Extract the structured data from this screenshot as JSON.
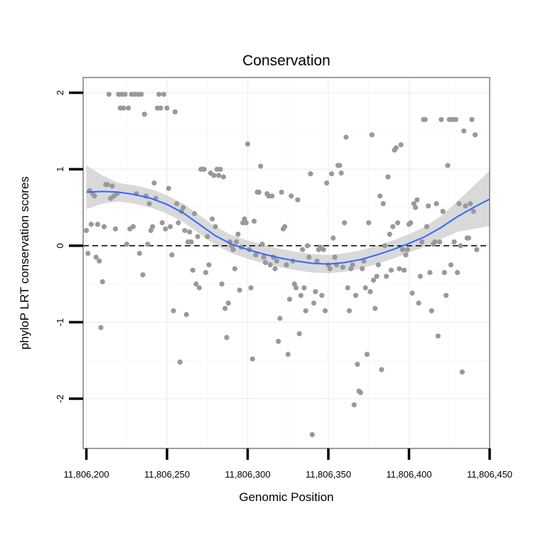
{
  "chart_data": {
    "type": "scatter",
    "title": "Conservation",
    "xlabel": "Genomic Position",
    "ylabel": "phyloP LRT conservation scores",
    "xlim": [
      11806198,
      11806450
    ],
    "ylim": [
      -2.65,
      2.2
    ],
    "x_ticks": [
      11806200,
      11806250,
      11806300,
      11806350,
      11806400,
      11806450
    ],
    "x_tick_labels": [
      "11,806,200",
      "11,806,250",
      "11,806,300",
      "11,806,350",
      "11,806,400",
      "11,806,450"
    ],
    "y_ticks": [
      -2,
      -1,
      0,
      1,
      2
    ],
    "y_tick_labels": [
      "-2",
      "-1",
      "0",
      "1",
      "2"
    ],
    "grid": true,
    "reference_line": {
      "y": 0,
      "style": "dashed"
    },
    "point_color": "#999999",
    "smooth_color": "#3366FF",
    "ribbon_color": "#CCCCCC",
    "points": [
      [
        11806200,
        0.2
      ],
      [
        11806201,
        -0.1
      ],
      [
        11806202,
        0.72
      ],
      [
        11806203,
        0.28
      ],
      [
        11806204,
        0.68
      ],
      [
        11806205,
        0.65
      ],
      [
        11806206,
        -0.15
      ],
      [
        11806207,
        0.28
      ],
      [
        11806208,
        -0.2
      ],
      [
        11806209,
        -1.07
      ],
      [
        11806210,
        -0.47
      ],
      [
        11806211,
        0.25
      ],
      [
        11806212,
        0.8
      ],
      [
        11806213,
        0.8
      ],
      [
        11806214,
        1.98
      ],
      [
        11806215,
        0.62
      ],
      [
        11806216,
        0.78
      ],
      [
        11806217,
        0.65
      ],
      [
        11806218,
        0.22
      ],
      [
        11806219,
        0.68
      ],
      [
        11806220,
        1.98
      ],
      [
        11806221,
        1.8
      ],
      [
        11806222,
        1.98
      ],
      [
        11806223,
        1.8
      ],
      [
        11806224,
        1.98
      ],
      [
        11806225,
        0.02
      ],
      [
        11806226,
        1.8
      ],
      [
        11806227,
        0.22
      ],
      [
        11806228,
        1.98
      ],
      [
        11806229,
        0.25
      ],
      [
        11806230,
        1.98
      ],
      [
        11806231,
        0.68
      ],
      [
        11806232,
        1.98
      ],
      [
        11806233,
        -0.1
      ],
      [
        11806234,
        1.98
      ],
      [
        11806235,
        -0.38
      ],
      [
        11806236,
        1.72
      ],
      [
        11806237,
        0.65
      ],
      [
        11806238,
        0.02
      ],
      [
        11806239,
        0.55
      ],
      [
        11806240,
        0.2
      ],
      [
        11806241,
        0.25
      ],
      [
        11806242,
        0.82
      ],
      [
        11806243,
        0.62
      ],
      [
        11806244,
        1.8
      ],
      [
        11806245,
        1.98
      ],
      [
        11806246,
        1.8
      ],
      [
        11806247,
        0.3
      ],
      [
        11806248,
        1.98
      ],
      [
        11806249,
        0.22
      ],
      [
        11806250,
        1.8
      ],
      [
        11806251,
        0.75
      ],
      [
        11806252,
        0.25
      ],
      [
        11806253,
        -0.12
      ],
      [
        11806254,
        -0.85
      ],
      [
        11806255,
        1.75
      ],
      [
        11806256,
        0.55
      ],
      [
        11806257,
        0.3
      ],
      [
        11806258,
        -1.52
      ],
      [
        11806259,
        0.45
      ],
      [
        11806260,
        0.5
      ],
      [
        11806261,
        0.2
      ],
      [
        11806262,
        -0.9
      ],
      [
        11806263,
        0.05
      ],
      [
        11806264,
        0.18
      ],
      [
        11806265,
        0.05
      ],
      [
        11806266,
        -0.32
      ],
      [
        11806267,
        0.42
      ],
      [
        11806268,
        -0.5
      ],
      [
        11806269,
        0.12
      ],
      [
        11806270,
        -0.55
      ],
      [
        11806271,
        1.0
      ],
      [
        11806272,
        1.0
      ],
      [
        11806273,
        1.0
      ],
      [
        11806274,
        -0.35
      ],
      [
        11806275,
        0.12
      ],
      [
        11806276,
        -0.25
      ],
      [
        11806277,
        0.95
      ],
      [
        11806278,
        0.35
      ],
      [
        11806279,
        0.92
      ],
      [
        11806280,
        0.25
      ],
      [
        11806281,
        1.0
      ],
      [
        11806282,
        0.92
      ],
      [
        11806283,
        1.0
      ],
      [
        11806284,
        -0.5
      ],
      [
        11806285,
        0.9
      ],
      [
        11806286,
        -0.82
      ],
      [
        11806287,
        -1.2
      ],
      [
        11806288,
        -0.75
      ],
      [
        11806289,
        0.05
      ],
      [
        11806290,
        0.0
      ],
      [
        11806291,
        -0.05
      ],
      [
        11806292,
        -0.3
      ],
      [
        11806293,
        0.05
      ],
      [
        11806294,
        0.15
      ],
      [
        11806295,
        -0.58
      ],
      [
        11806296,
        -0.02
      ],
      [
        11806297,
        0.3
      ],
      [
        11806298,
        0.35
      ],
      [
        11806299,
        0.3
      ],
      [
        11806300,
        1.33
      ],
      [
        11806301,
        -0.05
      ],
      [
        11806302,
        -0.55
      ],
      [
        11806303,
        -1.48
      ],
      [
        11806304,
        0.32
      ],
      [
        11806305,
        -0.12
      ],
      [
        11806306,
        0.7
      ],
      [
        11806307,
        0.7
      ],
      [
        11806308,
        1.04
      ],
      [
        11806309,
        0.02
      ],
      [
        11806310,
        -0.15
      ],
      [
        11806311,
        -0.22
      ],
      [
        11806312,
        0.68
      ],
      [
        11806313,
        0.65
      ],
      [
        11806314,
        -0.25
      ],
      [
        11806315,
        0.65
      ],
      [
        11806316,
        -0.15
      ],
      [
        11806317,
        -0.3
      ],
      [
        11806318,
        -0.2
      ],
      [
        11806319,
        -1.25
      ],
      [
        11806320,
        -0.95
      ],
      [
        11806321,
        0.7
      ],
      [
        11806322,
        0.22
      ],
      [
        11806323,
        0.25
      ],
      [
        11806324,
        -0.25
      ],
      [
        11806325,
        -1.42
      ],
      [
        11806326,
        -0.7
      ],
      [
        11806327,
        0.65
      ],
      [
        11806328,
        -0.2
      ],
      [
        11806329,
        -0.5
      ],
      [
        11806330,
        -0.55
      ],
      [
        11806331,
        0.6
      ],
      [
        11806332,
        -1.15
      ],
      [
        11806333,
        -0.65
      ],
      [
        11806334,
        -0.05
      ],
      [
        11806335,
        -0.55
      ],
      [
        11806336,
        -0.85
      ],
      [
        11806337,
        0.0
      ],
      [
        11806338,
        -0.15
      ],
      [
        11806339,
        0.94
      ],
      [
        11806340,
        -2.47
      ],
      [
        11806341,
        -0.75
      ],
      [
        11806342,
        -0.6
      ],
      [
        11806343,
        -0.2
      ],
      [
        11806344,
        -0.05
      ],
      [
        11806345,
        -0.02
      ],
      [
        11806346,
        -0.65
      ],
      [
        11806347,
        -0.05
      ],
      [
        11806348,
        -0.85
      ],
      [
        11806349,
        0.82
      ],
      [
        11806350,
        -0.25
      ],
      [
        11806351,
        -0.3
      ],
      [
        11806352,
        0.94
      ],
      [
        11806353,
        0.1
      ],
      [
        11806354,
        -0.15
      ],
      [
        11806355,
        -0.25
      ],
      [
        11806356,
        1.05
      ],
      [
        11806357,
        1.05
      ],
      [
        11806358,
        0.95
      ],
      [
        11806359,
        -0.28
      ],
      [
        11806360,
        0.3
      ],
      [
        11806361,
        1.42
      ],
      [
        11806362,
        -0.55
      ],
      [
        11806363,
        -0.85
      ],
      [
        11806364,
        -0.3
      ],
      [
        11806365,
        -0.25
      ],
      [
        11806366,
        -2.08
      ],
      [
        11806367,
        -0.65
      ],
      [
        11806368,
        -1.55
      ],
      [
        11806369,
        -1.9
      ],
      [
        11806370,
        -1.92
      ],
      [
        11806371,
        -0.3
      ],
      [
        11806372,
        -0.2
      ],
      [
        11806373,
        -0.55
      ],
      [
        11806374,
        -1.42
      ],
      [
        11806375,
        0.3
      ],
      [
        11806376,
        -0.6
      ],
      [
        11806377,
        1.45
      ],
      [
        11806378,
        -0.45
      ],
      [
        11806379,
        -0.82
      ],
      [
        11806380,
        -0.4
      ],
      [
        11806381,
        -0.25
      ],
      [
        11806382,
        0.65
      ],
      [
        11806383,
        -1.62
      ],
      [
        11806384,
        0.55
      ],
      [
        11806385,
        0.0
      ],
      [
        11806386,
        -0.4
      ],
      [
        11806387,
        0.9
      ],
      [
        11806388,
        0.15
      ],
      [
        11806389,
        -0.32
      ],
      [
        11806390,
        0.25
      ],
      [
        11806391,
        1.25
      ],
      [
        11806392,
        1.28
      ],
      [
        11806393,
        0.3
      ],
      [
        11806394,
        -0.3
      ],
      [
        11806395,
        1.32
      ],
      [
        11806396,
        -0.05
      ],
      [
        11806397,
        -0.32
      ],
      [
        11806398,
        -0.12
      ],
      [
        11806399,
        -0.05
      ],
      [
        11806400,
        0.28
      ],
      [
        11806401,
        0.3
      ],
      [
        11806402,
        -0.62
      ],
      [
        11806403,
        0.55
      ],
      [
        11806404,
        0.5
      ],
      [
        11806405,
        0.6
      ],
      [
        11806406,
        -0.75
      ],
      [
        11806407,
        -0.4
      ],
      [
        11806408,
        0.05
      ],
      [
        11806409,
        1.65
      ],
      [
        11806410,
        1.65
      ],
      [
        11806411,
        0.25
      ],
      [
        11806412,
        0.52
      ],
      [
        11806413,
        -0.35
      ],
      [
        11806414,
        -0.85
      ],
      [
        11806415,
        0.02
      ],
      [
        11806416,
        0.05
      ],
      [
        11806417,
        0.55
      ],
      [
        11806418,
        -1.18
      ],
      [
        11806419,
        0.05
      ],
      [
        11806420,
        1.65
      ],
      [
        11806421,
        0.45
      ],
      [
        11806422,
        -0.35
      ],
      [
        11806423,
        -0.65
      ],
      [
        11806424,
        1.05
      ],
      [
        11806425,
        1.65
      ],
      [
        11806426,
        -0.25
      ],
      [
        11806427,
        1.65
      ],
      [
        11806428,
        0.05
      ],
      [
        11806429,
        1.65
      ],
      [
        11806430,
        -0.35
      ],
      [
        11806431,
        0.55
      ],
      [
        11806432,
        0.0
      ],
      [
        11806433,
        -1.65
      ],
      [
        11806434,
        1.5
      ],
      [
        11806435,
        0.52
      ],
      [
        11806436,
        0.1
      ],
      [
        11806437,
        0.1
      ],
      [
        11806438,
        0.55
      ],
      [
        11806439,
        1.65
      ],
      [
        11806440,
        0.45
      ],
      [
        11806441,
        1.45
      ],
      [
        11806442,
        -0.05
      ]
    ],
    "smooth": [
      {
        "x": 11806200,
        "y": 0.7,
        "lo": 0.48,
        "hi": 1.05
      },
      {
        "x": 11806210,
        "y": 0.71,
        "lo": 0.55,
        "hi": 0.92
      },
      {
        "x": 11806220,
        "y": 0.7,
        "lo": 0.58,
        "hi": 0.82
      },
      {
        "x": 11806230,
        "y": 0.67,
        "lo": 0.55,
        "hi": 0.79
      },
      {
        "x": 11806240,
        "y": 0.62,
        "lo": 0.5,
        "hi": 0.74
      },
      {
        "x": 11806250,
        "y": 0.54,
        "lo": 0.42,
        "hi": 0.66
      },
      {
        "x": 11806260,
        "y": 0.43,
        "lo": 0.31,
        "hi": 0.55
      },
      {
        "x": 11806270,
        "y": 0.28,
        "lo": 0.16,
        "hi": 0.4
      },
      {
        "x": 11806280,
        "y": 0.13,
        "lo": 0.01,
        "hi": 0.25
      },
      {
        "x": 11806290,
        "y": 0.02,
        "lo": -0.1,
        "hi": 0.14
      },
      {
        "x": 11806300,
        "y": -0.05,
        "lo": -0.17,
        "hi": 0.07
      },
      {
        "x": 11806310,
        "y": -0.11,
        "lo": -0.23,
        "hi": 0.01
      },
      {
        "x": 11806320,
        "y": -0.16,
        "lo": -0.28,
        "hi": -0.04
      },
      {
        "x": 11806330,
        "y": -0.2,
        "lo": -0.32,
        "hi": -0.08
      },
      {
        "x": 11806340,
        "y": -0.23,
        "lo": -0.35,
        "hi": -0.11
      },
      {
        "x": 11806350,
        "y": -0.24,
        "lo": -0.36,
        "hi": -0.12
      },
      {
        "x": 11806360,
        "y": -0.22,
        "lo": -0.34,
        "hi": -0.1
      },
      {
        "x": 11806370,
        "y": -0.18,
        "lo": -0.3,
        "hi": -0.06
      },
      {
        "x": 11806380,
        "y": -0.12,
        "lo": -0.24,
        "hi": 0.0
      },
      {
        "x": 11806390,
        "y": -0.05,
        "lo": -0.17,
        "hi": 0.07
      },
      {
        "x": 11806400,
        "y": 0.03,
        "lo": -0.09,
        "hi": 0.15
      },
      {
        "x": 11806410,
        "y": 0.12,
        "lo": -0.01,
        "hi": 0.25
      },
      {
        "x": 11806420,
        "y": 0.24,
        "lo": 0.09,
        "hi": 0.39
      },
      {
        "x": 11806430,
        "y": 0.38,
        "lo": 0.18,
        "hi": 0.58
      },
      {
        "x": 11806440,
        "y": 0.5,
        "lo": 0.22,
        "hi": 0.78
      },
      {
        "x": 11806450,
        "y": 0.61,
        "lo": 0.26,
        "hi": 0.98
      }
    ]
  }
}
